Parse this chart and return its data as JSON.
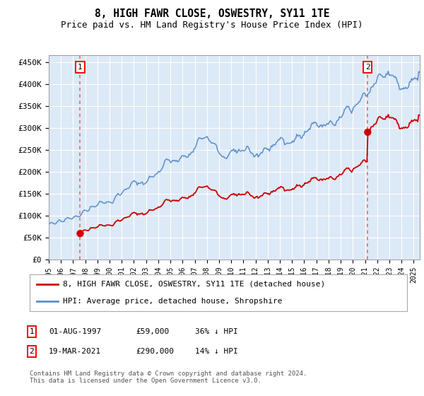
{
  "title": "8, HIGH FAWR CLOSE, OSWESTRY, SY11 1TE",
  "subtitle": "Price paid vs. HM Land Registry's House Price Index (HPI)",
  "ylabel_ticks": [
    "£0",
    "£50K",
    "£100K",
    "£150K",
    "£200K",
    "£250K",
    "£300K",
    "£350K",
    "£400K",
    "£450K"
  ],
  "ytick_values": [
    0,
    50000,
    100000,
    150000,
    200000,
    250000,
    300000,
    350000,
    400000,
    450000
  ],
  "ylim": [
    0,
    465000
  ],
  "xlim_start": 1995.0,
  "xlim_end": 2025.5,
  "plot_bg_color": "#dce9f7",
  "grid_color": "#ffffff",
  "sale1_year": 1997.583,
  "sale1_price": 59000,
  "sale2_year": 2021.22,
  "sale2_price": 290000,
  "hpi_color": "#5b8fcc",
  "price_color": "#cc0000",
  "vline_color": "#ee4444",
  "legend_label_price": "8, HIGH FAWR CLOSE, OSWESTRY, SY11 1TE (detached house)",
  "legend_label_hpi": "HPI: Average price, detached house, Shropshire",
  "table_row1": [
    "1",
    "01-AUG-1997",
    "£59,000",
    "36% ↓ HPI"
  ],
  "table_row2": [
    "2",
    "19-MAR-2021",
    "£290,000",
    "14% ↓ HPI"
  ],
  "footer": "Contains HM Land Registry data © Crown copyright and database right 2024.\nThis data is licensed under the Open Government Licence v3.0."
}
